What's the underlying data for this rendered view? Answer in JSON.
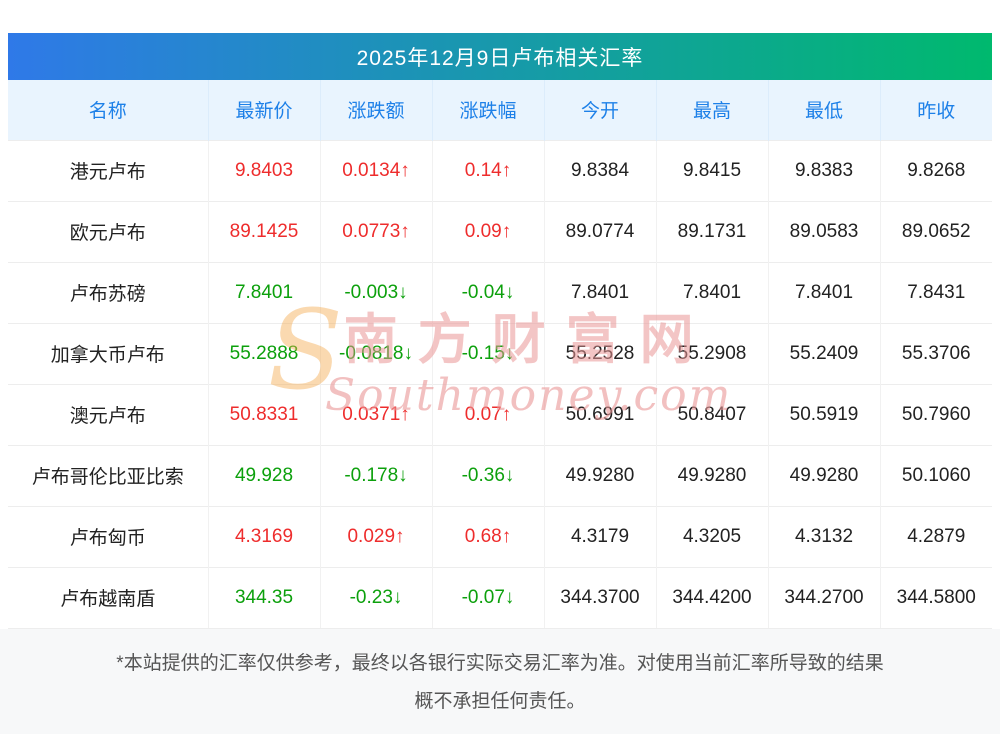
{
  "page": {
    "title": "2025年12月9日卢布相关汇率"
  },
  "table": {
    "headers": [
      "名称",
      "最新价",
      "涨跌额",
      "涨跌幅",
      "今开",
      "最高",
      "最低",
      "昨收"
    ],
    "rows": [
      {
        "name": "港元卢布",
        "latest": "9.8403",
        "change": "0.0134↑",
        "change_pct": "0.14↑",
        "open": "9.8384",
        "high": "9.8415",
        "low": "9.8383",
        "prev_close": "9.8268",
        "trend": "up"
      },
      {
        "name": "欧元卢布",
        "latest": "89.1425",
        "change": "0.0773↑",
        "change_pct": "0.09↑",
        "open": "89.0774",
        "high": "89.1731",
        "low": "89.0583",
        "prev_close": "89.0652",
        "trend": "up"
      },
      {
        "name": "卢布苏磅",
        "latest": "7.8401",
        "change": "-0.003↓",
        "change_pct": "-0.04↓",
        "open": "7.8401",
        "high": "7.8401",
        "low": "7.8401",
        "prev_close": "7.8431",
        "trend": "down"
      },
      {
        "name": "加拿大币卢布",
        "latest": "55.2888",
        "change": "-0.0818↓",
        "change_pct": "-0.15↓",
        "open": "55.2528",
        "high": "55.2908",
        "low": "55.2409",
        "prev_close": "55.3706",
        "trend": "down"
      },
      {
        "name": "澳元卢布",
        "latest": "50.8331",
        "change": "0.0371↑",
        "change_pct": "0.07↑",
        "open": "50.6991",
        "high": "50.8407",
        "low": "50.5919",
        "prev_close": "50.7960",
        "trend": "up"
      },
      {
        "name": "卢布哥伦比亚比索",
        "latest": "49.928",
        "change": "-0.178↓",
        "change_pct": "-0.36↓",
        "open": "49.9280",
        "high": "49.9280",
        "low": "49.9280",
        "prev_close": "50.1060",
        "trend": "down"
      },
      {
        "name": "卢布匈币",
        "latest": "4.3169",
        "change": "0.029↑",
        "change_pct": "0.68↑",
        "open": "4.3179",
        "high": "4.3205",
        "low": "4.3132",
        "prev_close": "4.2879",
        "trend": "up"
      },
      {
        "name": "卢布越南盾",
        "latest": "344.35",
        "change": "-0.23↓",
        "change_pct": "-0.07↓",
        "open": "344.3700",
        "high": "344.4200",
        "low": "344.2700",
        "prev_close": "344.5800",
        "trend": "down"
      }
    ]
  },
  "watermark": {
    "logo": "S",
    "cn": "南方财富网",
    "en": "Southmoney.com"
  },
  "footer": {
    "line1": "*本站提供的汇率仅供参考，最终以各银行实际交易汇率为准。对使用当前汇率所导致的结果",
    "line2": "概不承担任何责任。"
  },
  "colors": {
    "up": "#ee2c2c",
    "down": "#0ca00c",
    "header_text": "#1d80e8",
    "title_gradient_start": "#2f79e8",
    "title_gradient_end": "#00b96e"
  }
}
